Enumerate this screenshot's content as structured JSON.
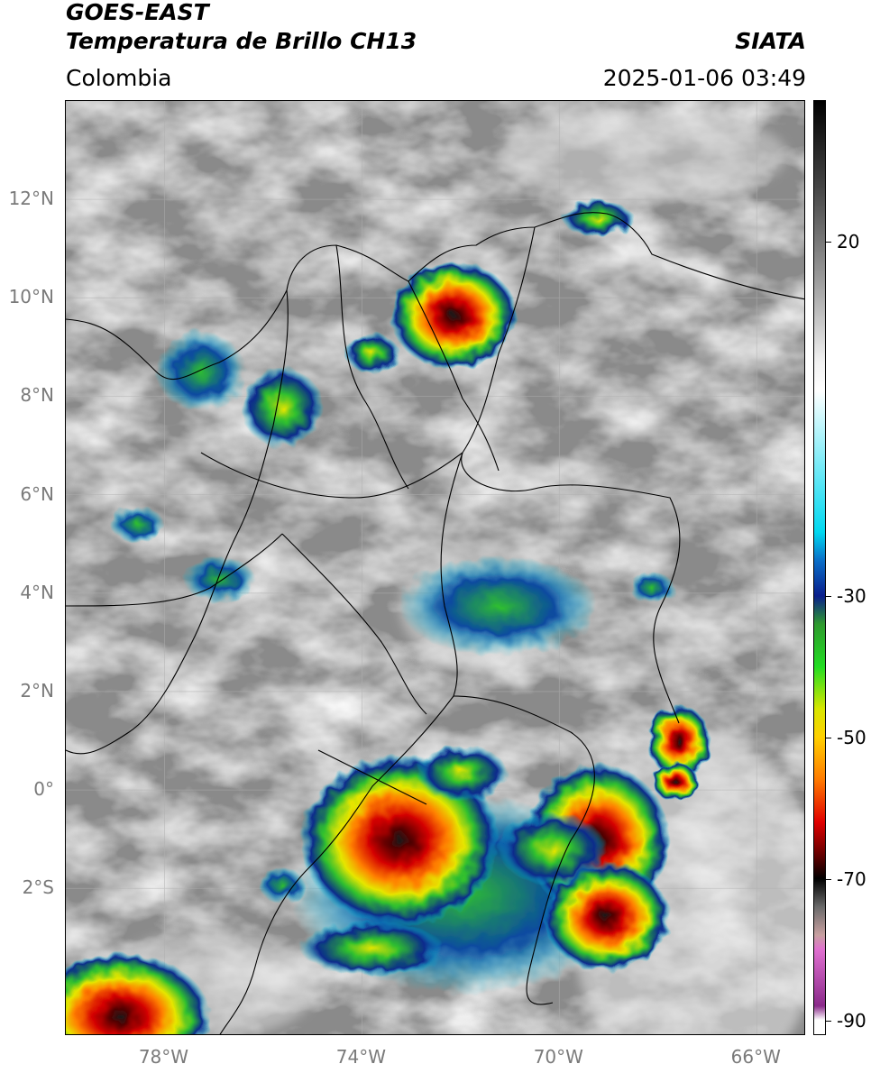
{
  "header": {
    "satellite": "GOES-EAST",
    "product": "Temperatura de Brillo CH13",
    "agency": "SIATA",
    "region": "Colombia",
    "datetime": "2025-01-06 03:49"
  },
  "map": {
    "lat_labels": [
      "12°N",
      "10°N",
      "8°N",
      "6°N",
      "4°N",
      "2°N",
      "0°",
      "2°S"
    ],
    "lon_labels": [
      "78°W",
      "74°W",
      "70°W",
      "66°W"
    ],
    "lat_values": [
      12,
      10,
      8,
      6,
      4,
      2,
      0,
      -2
    ],
    "lon_values": [
      -78,
      -74,
      -70,
      -66
    ],
    "extent": {
      "lon_min": -80,
      "lon_max": -65,
      "lat_min": -5,
      "lat_max": 14
    },
    "gridlines": true,
    "storm_colors": [
      "#00c8e0",
      "#0a2a8c",
      "#2fbf2f",
      "#e6e600",
      "#ff8000",
      "#d40000",
      "#5a0000",
      "#1a1a1a"
    ]
  },
  "colorbar": {
    "tick_labels": [
      "20",
      "-30",
      "-50",
      "-70",
      "-90"
    ],
    "tick_values": [
      20,
      -30,
      -50,
      -70,
      -90
    ],
    "range": [
      -92,
      40
    ],
    "color_stops": [
      {
        "value": 40,
        "color": "#000000"
      },
      {
        "value": 28,
        "color": "#444444"
      },
      {
        "value": 15,
        "color": "#9a9a9a"
      },
      {
        "value": 3,
        "color": "#f2f2f2"
      },
      {
        "value": -1,
        "color": "#ffffff"
      },
      {
        "value": -21,
        "color": "#00d8f0"
      },
      {
        "value": -25,
        "color": "#0a6ec8"
      },
      {
        "value": -30,
        "color": "#0a1e8c"
      },
      {
        "value": -34,
        "color": "#2f9a2f"
      },
      {
        "value": -40,
        "color": "#22dd22"
      },
      {
        "value": -46,
        "color": "#d8e600"
      },
      {
        "value": -50,
        "color": "#ffd000"
      },
      {
        "value": -56,
        "color": "#ff7a00"
      },
      {
        "value": -62,
        "color": "#e00000"
      },
      {
        "value": -67,
        "color": "#5a0000"
      },
      {
        "value": -70,
        "color": "#000000"
      },
      {
        "value": -74,
        "color": "#6a6a6a"
      },
      {
        "value": -78,
        "color": "#c8a0a0"
      },
      {
        "value": -80,
        "color": "#e070d0"
      },
      {
        "value": -88,
        "color": "#8a2a8a"
      },
      {
        "value": -90,
        "color": "#ffffff"
      }
    ]
  }
}
